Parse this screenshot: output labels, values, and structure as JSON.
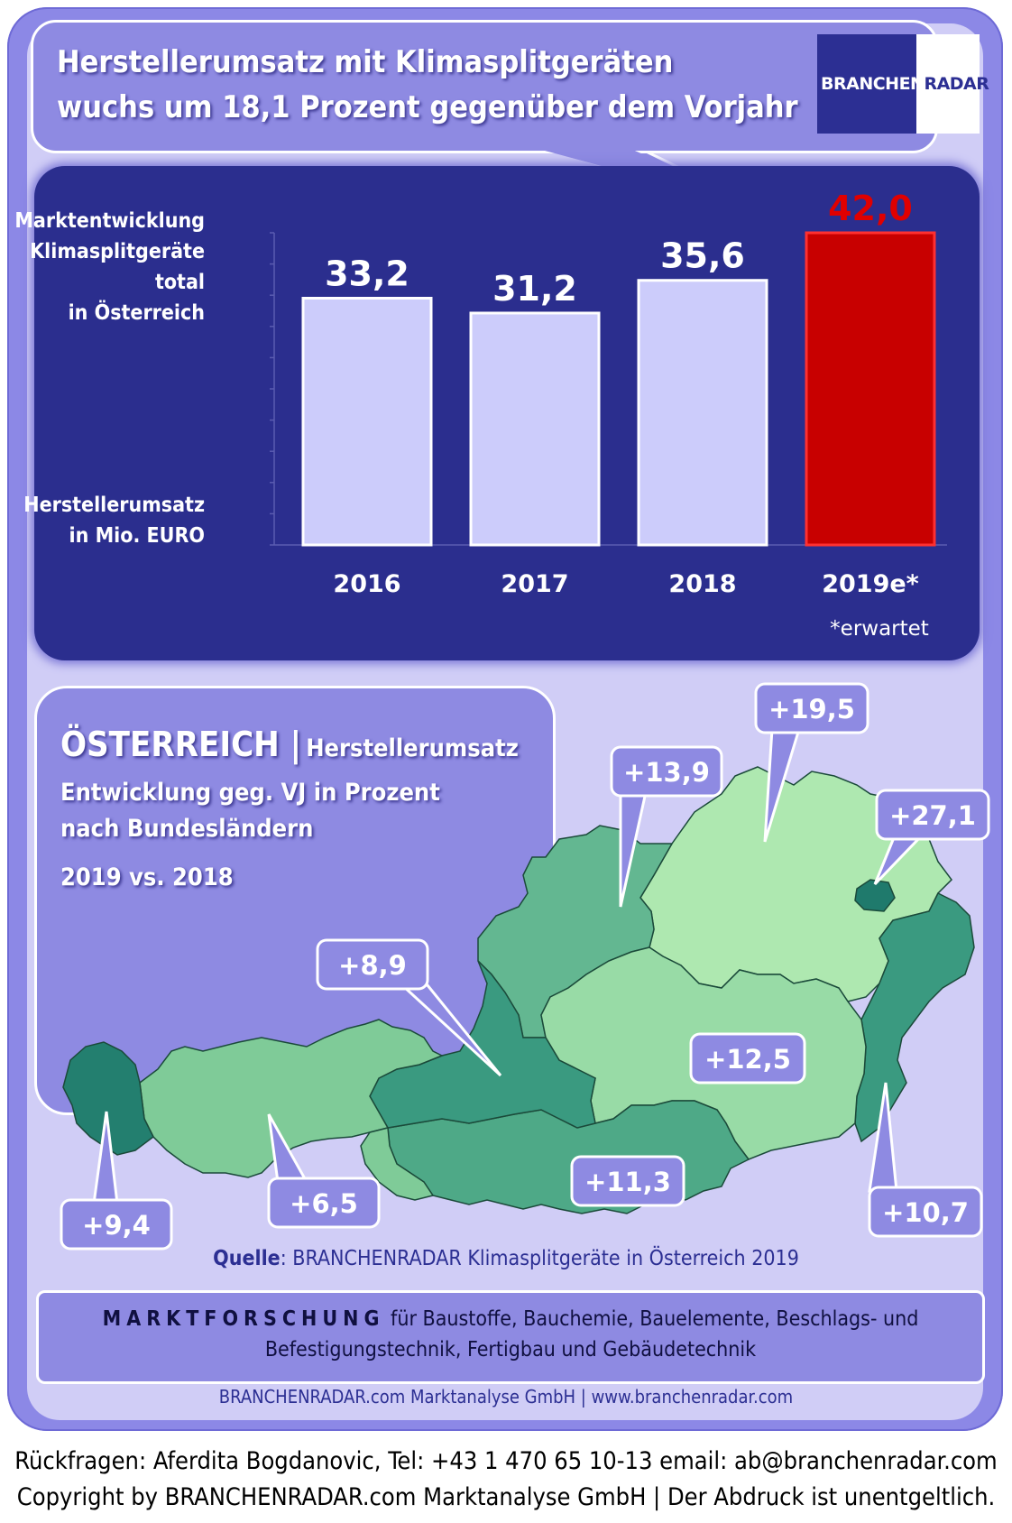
{
  "headline": {
    "line1": "Herstellerumsatz mit  Klimasplitgeräten",
    "line2": "wuchs um 18,1 Prozent gegenüber dem Vorjahr"
  },
  "logo": {
    "part1": "BRANCHEN",
    "part2": "RADAR"
  },
  "chart_data": {
    "type": "bar",
    "title_lines": [
      "Marktentwicklung",
      "Klimasplitgeräte",
      "total",
      "in Österreich"
    ],
    "ylabel_lines": [
      "Herstellerumsatz",
      "in Mio. EURO"
    ],
    "categories": [
      "2016",
      "2017",
      "2018",
      "2019e*"
    ],
    "value_labels": [
      "33,2",
      "31,2",
      "35,6",
      "42,0"
    ],
    "values": [
      33.2,
      31.2,
      35.6,
      42.0
    ],
    "ylim": [
      0,
      42
    ],
    "highlight_index": 3,
    "colors": {
      "bar": "#ccccfb",
      "highlight": "#c80000",
      "highlight_label": "#e00000",
      "label": "#ffffff"
    },
    "footnote": "*erwartet"
  },
  "map": {
    "title_main": "ÖSTERREICH |",
    "title_sub": "Herstellerumsatz",
    "line1": "Entwicklung  geg. VJ in Prozent",
    "line2": "nach Bundesländern",
    "line3": "2019  vs. 2018",
    "regions": [
      {
        "name": "Vorarlberg",
        "value": "+9,4",
        "color": "#237f6f"
      },
      {
        "name": "Tirol",
        "value": "+6,5",
        "color": "#7fcb98"
      },
      {
        "name": "Salzburg",
        "value": "+8,9",
        "color": "#3a9a80"
      },
      {
        "name": "Oberösterreich",
        "value": "+13,9",
        "color": "#63b791"
      },
      {
        "name": "Niederösterreich",
        "value": "+19,5",
        "color": "#aee8b0"
      },
      {
        "name": "Wien",
        "value": "+27,1",
        "color": "#1f7a6c"
      },
      {
        "name": "Steiermark",
        "value": "+12,5",
        "color": "#98dba6"
      },
      {
        "name": "Kärnten",
        "value": "+11,3",
        "color": "#4ea987"
      },
      {
        "name": "Burgenland",
        "value": "+10,7",
        "color": "#3a9a80"
      }
    ]
  },
  "source": {
    "label": "Quelle",
    "text": ": BRANCHENRADAR Klimasplitgeräte in Österreich 2019"
  },
  "marktforschung": {
    "label": "MARKTFORSCHUNG",
    "text1": " für Baustoffe, Bauchemie, Bauelemente, Beschlags- und",
    "text2": "Befestigungstechnik, Fertigbau und Gebäudetechnik"
  },
  "firm": "BRANCHENRADAR.com Marktanalyse GmbH | www.branchenradar.com",
  "footer": {
    "line1": "Rückfragen: Aferdita Bogdanovic, Tel: +43 1 470 65 10-13 email: ab@branchenradar.com",
    "line2": "Copyright by BRANCHENRADAR.com  Marktanalyse GmbH | Der Abdruck ist unentgeltlich."
  }
}
